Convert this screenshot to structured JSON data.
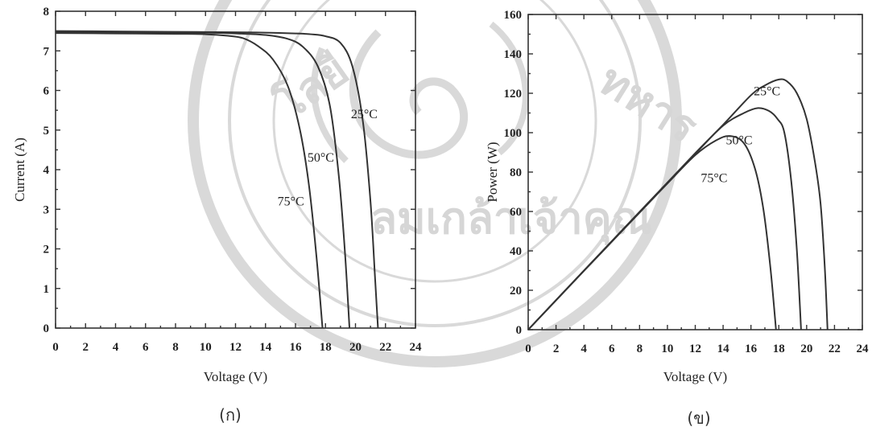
{
  "chart_data": [
    {
      "type": "line",
      "caption": "(ก)",
      "xlabel": "Voltage (V)",
      "ylabel": "Current (A)",
      "xlim": [
        0,
        24
      ],
      "ylim": [
        0,
        8
      ],
      "xticks": [
        0,
        2,
        4,
        6,
        8,
        10,
        12,
        14,
        16,
        18,
        20,
        22,
        24
      ],
      "yticks": [
        0,
        1,
        2,
        3,
        4,
        5,
        6,
        7,
        8
      ],
      "grid": false,
      "series": [
        {
          "name": "25°C",
          "label_at": [
            19.7,
            5.3
          ],
          "x": [
            0,
            4,
            8,
            12,
            14,
            16,
            17,
            18,
            19,
            19.8,
            20.5,
            21.0,
            21.3,
            21.5
          ],
          "y": [
            7.5,
            7.49,
            7.48,
            7.47,
            7.46,
            7.44,
            7.42,
            7.37,
            7.2,
            6.6,
            5.2,
            3.2,
            1.3,
            0
          ]
        },
        {
          "name": "50°C",
          "label_at": [
            16.8,
            4.2
          ],
          "x": [
            0,
            4,
            8,
            10,
            12,
            14,
            15.5,
            16.5,
            17.5,
            18.3,
            18.9,
            19.3,
            19.6
          ],
          "y": [
            7.48,
            7.47,
            7.46,
            7.46,
            7.44,
            7.4,
            7.3,
            7.1,
            6.6,
            5.6,
            3.8,
            1.9,
            0
          ]
        },
        {
          "name": "75°C",
          "label_at": [
            14.8,
            3.1
          ],
          "x": [
            0,
            4,
            8,
            10,
            11.5,
            12.5,
            13.5,
            14.5,
            15.5,
            16.3,
            16.9,
            17.4,
            17.8
          ],
          "y": [
            7.45,
            7.44,
            7.43,
            7.42,
            7.38,
            7.32,
            7.12,
            6.78,
            6.1,
            5.0,
            3.6,
            1.8,
            0
          ]
        }
      ]
    },
    {
      "type": "line",
      "caption": "(ข)",
      "xlabel": "Voltage (V)",
      "ylabel": "Power (W)",
      "xlim": [
        0,
        24
      ],
      "ylim": [
        0,
        160
      ],
      "xticks": [
        0,
        2,
        4,
        6,
        8,
        10,
        12,
        14,
        16,
        18,
        20,
        22,
        24
      ],
      "yticks": [
        0,
        20,
        40,
        60,
        80,
        100,
        120,
        140,
        160
      ],
      "grid": false,
      "series": [
        {
          "name": "25°C",
          "label_at": [
            16.2,
            119
          ],
          "x": [
            0,
            4,
            8,
            12,
            14,
            16,
            17,
            18,
            18.6,
            19.3,
            20,
            20.6,
            21.0,
            21.3,
            21.5
          ],
          "y": [
            0,
            30,
            59.8,
            89.6,
            104,
            119,
            124,
            127,
            126,
            120,
            107,
            85,
            64,
            32,
            0
          ]
        },
        {
          "name": "50°C",
          "label_at": [
            14.2,
            94
          ],
          "x": [
            0,
            4,
            8,
            12,
            14,
            15.5,
            16.5,
            17.3,
            17.9,
            18.4,
            18.9,
            19.3,
            19.6
          ],
          "y": [
            0,
            29.9,
            59.7,
            89.3,
            103.6,
            110,
            112.5,
            111,
            107,
            100,
            75,
            40,
            0
          ]
        },
        {
          "name": "75°C",
          "label_at": [
            12.4,
            75
          ],
          "x": [
            0,
            4,
            8,
            10,
            12,
            13.5,
            14.5,
            15.5,
            16.3,
            16.9,
            17.4,
            17.8
          ],
          "y": [
            0,
            29.8,
            59.4,
            74.2,
            88.6,
            96.1,
            98.3,
            94.6,
            81.5,
            60.8,
            31.3,
            0
          ]
        }
      ]
    }
  ]
}
